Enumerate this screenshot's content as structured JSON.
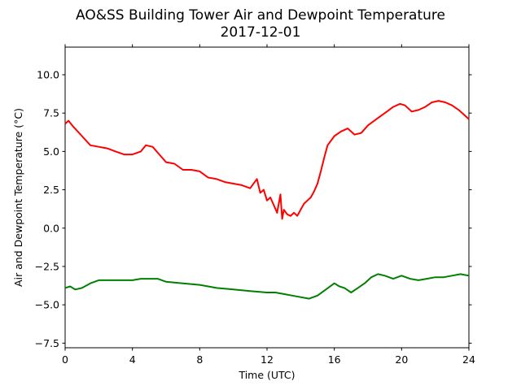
{
  "chart_data": {
    "type": "line",
    "title": "AO&SS Building Tower Air and Dewpoint Temperature",
    "subtitle": "2017-12-01",
    "xlabel": "Time (UTC)",
    "ylabel": "Air and Dewpoint Temperature (°C)",
    "xlim": [
      0,
      24
    ],
    "ylim": [
      -7.8,
      11.8
    ],
    "xticks": [
      0,
      4,
      8,
      12,
      16,
      20,
      24
    ],
    "yticks": [
      -7.5,
      -5.0,
      -2.5,
      0.0,
      2.5,
      5.0,
      7.5,
      10.0
    ],
    "xtick_labels": [
      "0",
      "4",
      "8",
      "12",
      "16",
      "20",
      "24"
    ],
    "ytick_labels": [
      "−7.5",
      "−5.0",
      "−2.5",
      "0.0",
      "2.5",
      "5.0",
      "7.5",
      "10.0"
    ],
    "grid": false,
    "legend": "none",
    "series": [
      {
        "color": "#ff0000",
        "x": [
          0,
          0.2,
          0.5,
          1.0,
          1.5,
          2.0,
          2.5,
          3.0,
          3.5,
          4.0,
          4.5,
          4.8,
          5.2,
          5.6,
          6.0,
          6.5,
          7.0,
          7.5,
          8.0,
          8.5,
          9.0,
          9.5,
          10.0,
          10.5,
          11.0,
          11.4,
          11.6,
          11.8,
          12.0,
          12.2,
          12.4,
          12.6,
          12.8,
          12.9,
          13.0,
          13.2,
          13.4,
          13.6,
          13.8,
          14.0,
          14.2,
          14.4,
          14.6,
          14.8,
          15.0,
          15.2,
          15.4,
          15.6,
          16.0,
          16.4,
          16.8,
          17.2,
          17.6,
          18.0,
          18.5,
          19.0,
          19.5,
          19.9,
          20.2,
          20.6,
          21.0,
          21.4,
          21.8,
          22.2,
          22.6,
          23.0,
          23.4,
          23.8,
          24.0
        ],
        "values": [
          6.8,
          7.0,
          6.6,
          6.0,
          5.4,
          5.3,
          5.2,
          5.0,
          4.8,
          4.8,
          5.0,
          5.4,
          5.3,
          4.8,
          4.3,
          4.2,
          3.8,
          3.8,
          3.7,
          3.3,
          3.2,
          3.0,
          2.9,
          2.8,
          2.6,
          3.2,
          2.3,
          2.5,
          1.8,
          2.0,
          1.5,
          1.0,
          2.2,
          0.6,
          1.2,
          0.9,
          0.8,
          1.0,
          0.8,
          1.2,
          1.6,
          1.8,
          2.0,
          2.4,
          2.9,
          3.7,
          4.6,
          5.4,
          6.0,
          6.3,
          6.5,
          6.1,
          6.2,
          6.7,
          7.1,
          7.5,
          7.9,
          8.1,
          8.0,
          7.6,
          7.7,
          7.9,
          8.2,
          8.3,
          8.2,
          8.0,
          7.7,
          7.3,
          7.1
        ]
      },
      {
        "color": "#008000",
        "x": [
          0,
          0.3,
          0.6,
          1.0,
          1.5,
          2.0,
          3.0,
          4.0,
          4.5,
          5.0,
          5.5,
          6.0,
          7.0,
          8.0,
          8.5,
          9.0,
          10.0,
          11.0,
          12.0,
          12.5,
          13.0,
          13.5,
          14.0,
          14.5,
          15.0,
          15.5,
          16.0,
          16.3,
          16.6,
          17.0,
          17.4,
          17.8,
          18.2,
          18.6,
          19.0,
          19.5,
          20.0,
          20.5,
          21.0,
          21.5,
          22.0,
          22.5,
          23.0,
          23.5,
          24.0
        ],
        "values": [
          -3.9,
          -3.8,
          -4.0,
          -3.9,
          -3.6,
          -3.4,
          -3.4,
          -3.4,
          -3.3,
          -3.3,
          -3.3,
          -3.5,
          -3.6,
          -3.7,
          -3.8,
          -3.9,
          -4.0,
          -4.1,
          -4.2,
          -4.2,
          -4.3,
          -4.4,
          -4.5,
          -4.6,
          -4.4,
          -4.0,
          -3.6,
          -3.8,
          -3.9,
          -4.2,
          -3.9,
          -3.6,
          -3.2,
          -3.0,
          -3.1,
          -3.3,
          -3.1,
          -3.3,
          -3.4,
          -3.3,
          -3.2,
          -3.2,
          -3.1,
          -3.0,
          -3.1
        ]
      }
    ]
  }
}
